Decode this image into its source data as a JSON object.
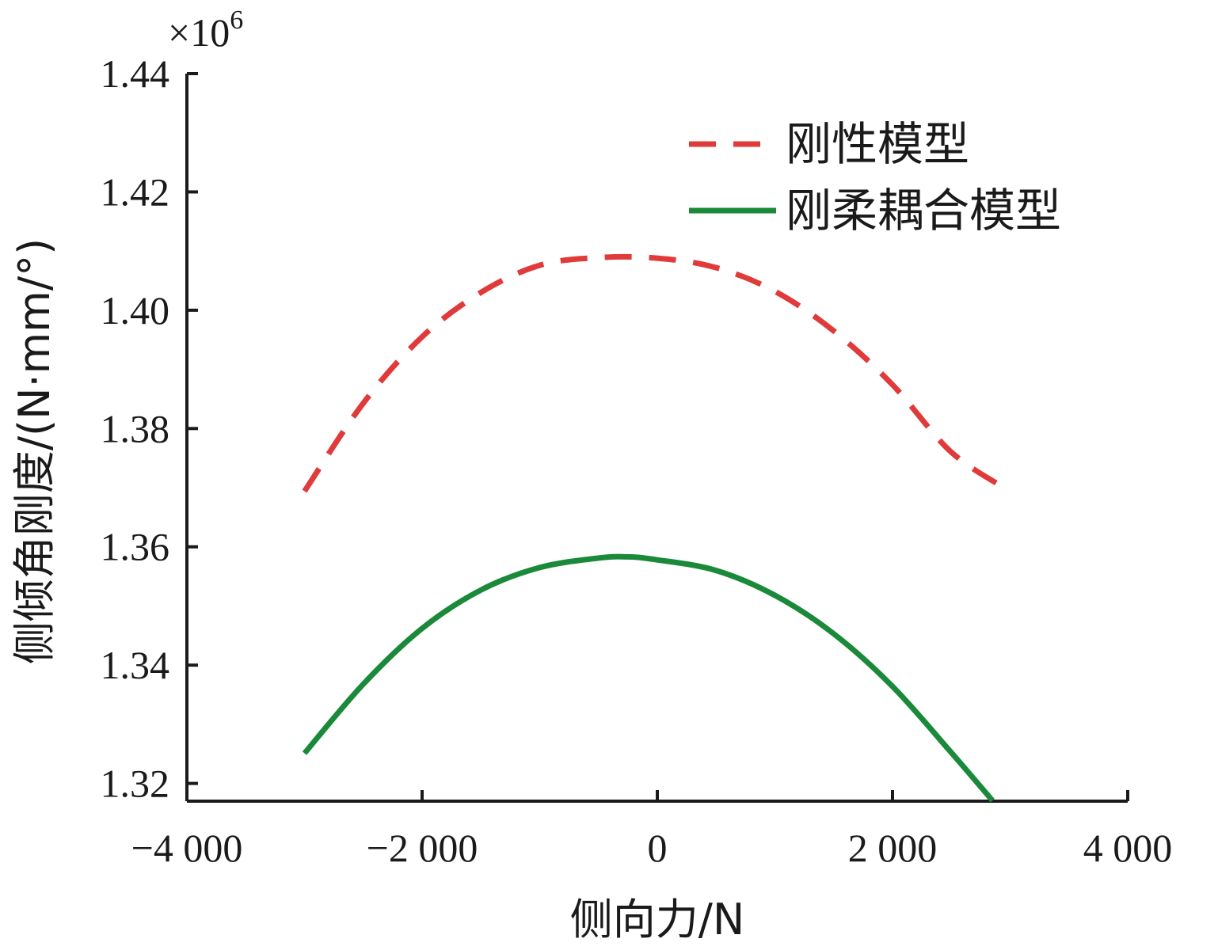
{
  "chart_data": {
    "type": "line",
    "xlabel": "侧向力/N",
    "ylabel": "侧倾角刚度/(N·mm/°)",
    "y_multiplier": "×10",
    "y_multiplier_exp": "6",
    "xlim": [
      -4000,
      4000
    ],
    "ylim": [
      1.317,
      1.44
    ],
    "xticks": [
      -4000,
      -2000,
      0,
      2000,
      4000
    ],
    "xtick_labels": [
      "−4 000",
      "−2 000",
      "0",
      "2 000",
      "4 000"
    ],
    "yticks": [
      1.32,
      1.34,
      1.36,
      1.38,
      1.4,
      1.42,
      1.44
    ],
    "ytick_labels": [
      "1.32",
      "1.34",
      "1.36",
      "1.38",
      "1.40",
      "1.42",
      "1.44"
    ],
    "legend_position": "top-right",
    "series": [
      {
        "name": "刚性模型",
        "color": "#e03a3a",
        "style": "dashed",
        "x": [
          -3000,
          -2500,
          -2000,
          -1500,
          -1000,
          -500,
          0,
          500,
          1000,
          1500,
          2000,
          2500,
          3000
        ],
        "y": [
          1.3694,
          1.3843,
          1.3955,
          1.403,
          1.4076,
          1.4089,
          1.4088,
          1.4072,
          1.4032,
          1.3965,
          1.3874,
          1.376,
          1.3694
        ]
      },
      {
        "name": "刚柔耦合模型",
        "color": "#1a8a3a",
        "style": "solid",
        "x": [
          -3000,
          -2500,
          -2000,
          -1500,
          -1000,
          -500,
          -250,
          0,
          500,
          1000,
          1500,
          2000,
          2500,
          2850
        ],
        "y": [
          1.3251,
          1.3368,
          1.3462,
          1.3527,
          1.3565,
          1.3581,
          1.3583,
          1.3578,
          1.356,
          1.3518,
          1.3453,
          1.3364,
          1.3252,
          1.3171
        ]
      }
    ]
  }
}
